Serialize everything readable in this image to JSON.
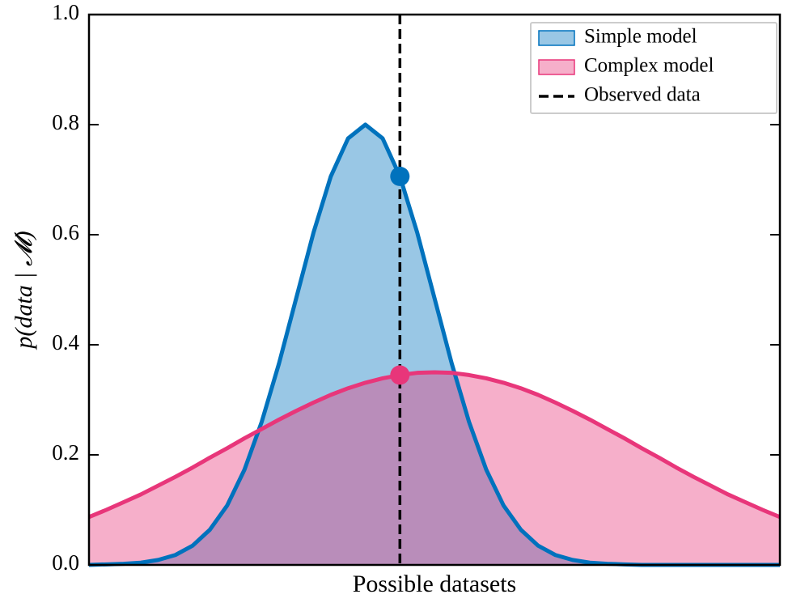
{
  "chart_data": {
    "type": "area",
    "xlabel": "Possible datasets",
    "ylabel": "p(data | 𝓜)",
    "xlim": [
      0,
      10
    ],
    "ylim": [
      0,
      1
    ],
    "yticks": [
      {
        "value": 0,
        "label": "0.0"
      },
      {
        "value": 0.2,
        "label": "0.2"
      },
      {
        "value": 0.4,
        "label": "0.4"
      },
      {
        "value": 0.6,
        "label": "0.6"
      },
      {
        "value": 0.8,
        "label": "0.8"
      },
      {
        "value": 1,
        "label": "1.0"
      }
    ],
    "legend": "upper right",
    "x": [
      0,
      0.25,
      0.5,
      0.75,
      1,
      1.25,
      1.5,
      1.75,
      2,
      2.25,
      2.5,
      2.75,
      3,
      3.25,
      3.5,
      3.75,
      4,
      4.25,
      4.5,
      4.75,
      5,
      5.25,
      5.5,
      5.75,
      6,
      6.25,
      6.5,
      6.75,
      7,
      7.25,
      7.5,
      7.75,
      8,
      8.25,
      8.5,
      8.75,
      9,
      9.25,
      9.5,
      9.75,
      10
    ],
    "series": [
      {
        "name": "Simple model",
        "color": "#0072bd",
        "values": [
          0.0,
          0.001,
          0.002,
          0.004,
          0.009,
          0.018,
          0.035,
          0.064,
          0.108,
          0.173,
          0.26,
          0.366,
          0.485,
          0.604,
          0.706,
          0.775,
          0.8,
          0.775,
          0.706,
          0.604,
          0.485,
          0.366,
          0.26,
          0.173,
          0.108,
          0.064,
          0.035,
          0.018,
          0.009,
          0.004,
          0.002,
          0.001,
          0.0,
          0,
          0,
          0,
          0,
          0,
          0,
          0,
          0
        ]
      },
      {
        "name": "Complex model",
        "color": "#e8367a",
        "values": [
          0.087,
          0.1,
          0.114,
          0.128,
          0.144,
          0.16,
          0.177,
          0.195,
          0.212,
          0.23,
          0.247,
          0.264,
          0.28,
          0.295,
          0.309,
          0.321,
          0.331,
          0.339,
          0.345,
          0.349,
          0.35,
          0.349,
          0.345,
          0.339,
          0.331,
          0.321,
          0.309,
          0.295,
          0.28,
          0.264,
          0.247,
          0.23,
          0.212,
          0.195,
          0.177,
          0.16,
          0.144,
          0.128,
          0.114,
          0.1,
          0.087
        ]
      }
    ],
    "observed": {
      "name": "Observed data",
      "color": "#000000",
      "index": 18
    }
  }
}
